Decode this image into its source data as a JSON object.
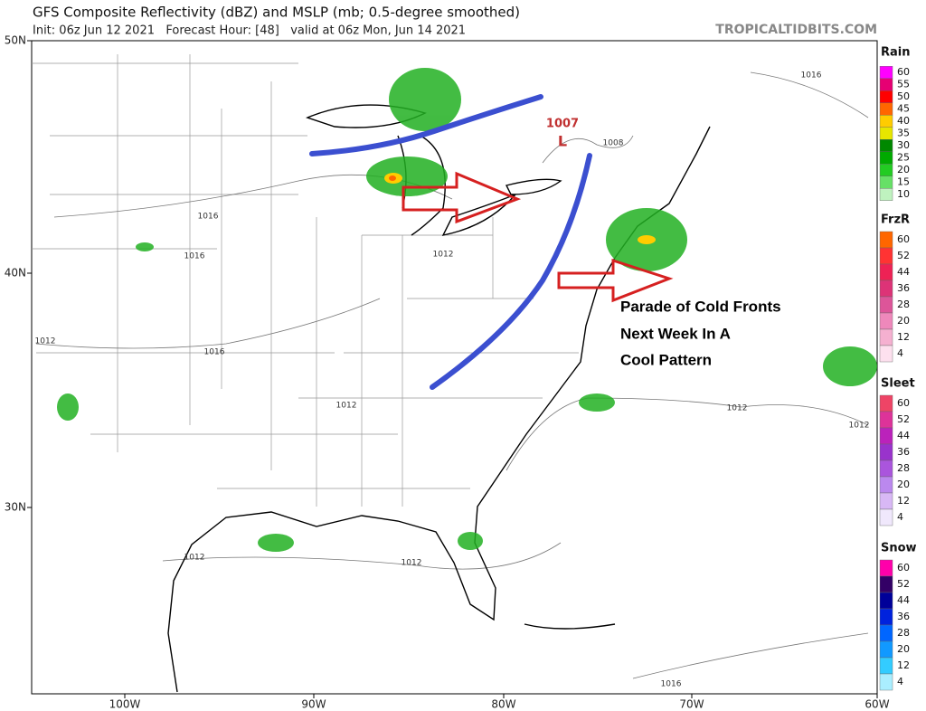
{
  "header": {
    "title": "GFS Composite Reflectivity (dBZ) and MSLP (mb; 0.5-degree smoothed)",
    "subtitle": "Init: 06z Jun 12 2021   Forecast Hour: [48]   valid at 06z Mon, Jun 14 2021",
    "watermark": "TROPICALTIDBITS.COM"
  },
  "map": {
    "lat_labels": [
      "50N",
      "40N",
      "30N"
    ],
    "lon_labels": [
      "100W",
      "90W",
      "80W",
      "70W",
      "60W"
    ],
    "isobar_labels": [
      "1016",
      "1016",
      "1012",
      "1016",
      "1012",
      "1012",
      "1012",
      "1012",
      "1008",
      "1016",
      "1012",
      "1012",
      "1016"
    ],
    "low": {
      "pressure": "1007",
      "symbol": "L"
    },
    "annotation": [
      "Parade of Cold Fronts",
      "Next Week In A",
      "Cool Pattern"
    ]
  },
  "legend": [
    {
      "title": "Rain",
      "ticks": [
        60,
        55,
        50,
        45,
        40,
        35,
        30,
        25,
        20,
        15,
        10
      ],
      "colors": [
        "#ff00ff",
        "#e60073",
        "#ff0000",
        "#ff6600",
        "#ffcc00",
        "#e6e600",
        "#008800",
        "#00aa00",
        "#22cc22",
        "#66e066",
        "#bff2bf"
      ]
    },
    {
      "title": "FrzR",
      "ticks": [
        60,
        52,
        44,
        36,
        28,
        20,
        12,
        4
      ],
      "colors": [
        "#ff6600",
        "#ff3333",
        "#ee2255",
        "#dd3377",
        "#dd5599",
        "#ee88bb",
        "#f5b0d0",
        "#fde0ee"
      ]
    },
    {
      "title": "Sleet",
      "ticks": [
        60,
        52,
        44,
        36,
        28,
        20,
        12,
        4
      ],
      "colors": [
        "#ee4466",
        "#dd3399",
        "#bb22bb",
        "#9933cc",
        "#aa55dd",
        "#bb88ee",
        "#d8b8f5",
        "#f0e8fc"
      ]
    },
    {
      "title": "Snow",
      "ticks": [
        60,
        52,
        44,
        36,
        28,
        20,
        12,
        4
      ],
      "colors": [
        "#ff00aa",
        "#330066",
        "#000099",
        "#0022dd",
        "#0066ff",
        "#1199ff",
        "#33ccff",
        "#aaeeff"
      ]
    }
  ]
}
